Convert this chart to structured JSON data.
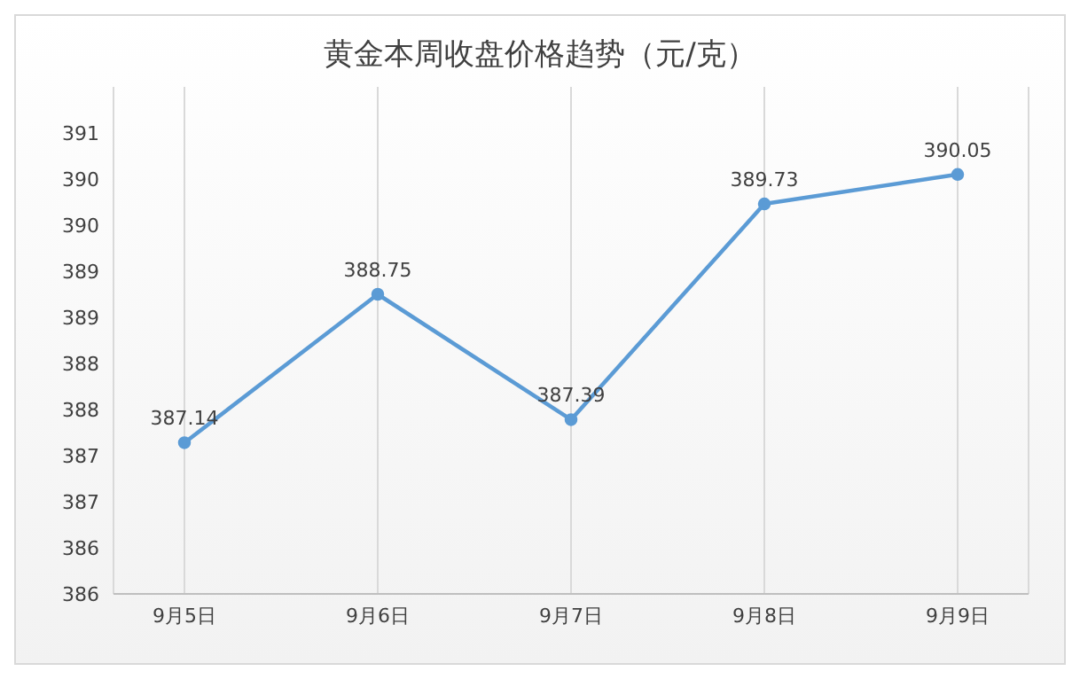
{
  "chart_data": {
    "type": "line",
    "title": "黄金本周收盘价格趋势（元/克）",
    "categories": [
      "9月5日",
      "9月6日",
      "9月7日",
      "9月8日",
      "9月9日"
    ],
    "series": [
      {
        "color": "#5b9bd5",
        "values": [
          387.14,
          388.75,
          387.39,
          389.73,
          390.05
        ]
      }
    ],
    "ylim": [
      385.5,
      391
    ],
    "yticks": [
      {
        "value": 385.5,
        "label": "386"
      },
      {
        "value": 386,
        "label": "386"
      },
      {
        "value": 386.5,
        "label": "387"
      },
      {
        "value": 387,
        "label": "387"
      },
      {
        "value": 387.5,
        "label": "388"
      },
      {
        "value": 388,
        "label": "388"
      },
      {
        "value": 388.5,
        "label": "389"
      },
      {
        "value": 389,
        "label": "389"
      },
      {
        "value": 389.5,
        "label": "390"
      },
      {
        "value": 390,
        "label": "390"
      },
      {
        "value": 390.5,
        "label": "391"
      }
    ],
    "grid": "x",
    "marker": "circle",
    "line_style": "solid",
    "data_labels": true
  }
}
